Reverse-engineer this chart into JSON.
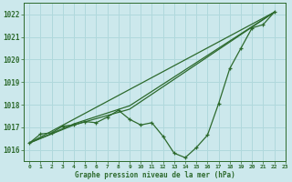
{
  "background_color": "#cce8ec",
  "grid_color": "#b0d8dc",
  "line_color": "#2d6a2d",
  "xlabel": "Graphe pression niveau de la mer (hPa)",
  "xlim": [
    -0.5,
    23
  ],
  "ylim": [
    1015.5,
    1022.5
  ],
  "yticks": [
    1016,
    1017,
    1018,
    1019,
    1020,
    1021,
    1022
  ],
  "xticks": [
    0,
    1,
    2,
    3,
    4,
    5,
    6,
    7,
    8,
    9,
    10,
    11,
    12,
    13,
    14,
    15,
    16,
    17,
    18,
    19,
    20,
    21,
    22,
    23
  ],
  "series_marked_x": [
    0,
    1,
    2,
    3,
    4,
    5,
    6,
    7,
    8,
    9,
    10,
    11,
    12,
    13,
    14,
    15,
    16,
    17,
    18,
    19,
    20,
    21,
    22
  ],
  "series_marked_y": [
    1016.3,
    1016.7,
    1016.75,
    1017.05,
    1017.1,
    1017.25,
    1017.2,
    1017.45,
    1017.75,
    1017.35,
    1017.1,
    1017.2,
    1016.6,
    1015.85,
    1015.65,
    1016.1,
    1016.65,
    1018.05,
    1019.6,
    1020.5,
    1021.4,
    1021.55,
    1022.1
  ],
  "series_line1_x": [
    0,
    22
  ],
  "series_line1_y": [
    1016.3,
    1022.1
  ],
  "series_line2_x": [
    0,
    4,
    9,
    22
  ],
  "series_line2_y": [
    1016.3,
    1017.15,
    1017.95,
    1022.1
  ],
  "series_line3_x": [
    0,
    4,
    9,
    22
  ],
  "series_line3_y": [
    1016.3,
    1017.1,
    1017.8,
    1022.1
  ]
}
